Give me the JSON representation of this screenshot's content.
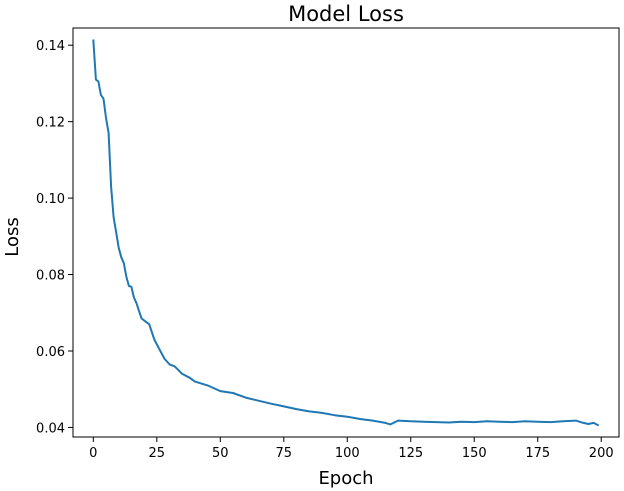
{
  "chart_data": {
    "type": "line",
    "title": "Model Loss",
    "xlabel": "Epoch",
    "ylabel": "Loss",
    "xlim": [
      -8,
      207
    ],
    "ylim": [
      0.0375,
      0.1445
    ],
    "xticks": [
      0,
      25,
      50,
      75,
      100,
      125,
      150,
      175,
      200
    ],
    "xtick_labels": [
      "0",
      "25",
      "50",
      "75",
      "100",
      "125",
      "150",
      "175",
      "200"
    ],
    "yticks": [
      0.04,
      0.06,
      0.08,
      0.1,
      0.12,
      0.14
    ],
    "ytick_labels": [
      "0.04",
      "0.06",
      "0.08",
      "0.10",
      "0.12",
      "0.14"
    ],
    "grid": false,
    "legend": "none",
    "series": [
      {
        "color": "#1f77b4",
        "x": [
          0,
          1,
          2,
          3,
          4,
          5,
          6,
          7,
          8,
          9,
          10,
          11,
          12,
          13,
          14,
          15,
          16,
          17,
          18,
          19,
          20,
          22,
          24,
          26,
          28,
          30,
          32,
          35,
          38,
          40,
          45,
          50,
          55,
          60,
          65,
          70,
          75,
          80,
          85,
          90,
          95,
          100,
          105,
          110,
          115,
          117,
          120,
          125,
          130,
          135,
          140,
          145,
          150,
          155,
          160,
          165,
          170,
          175,
          180,
          185,
          190,
          193,
          195,
          197,
          199
        ],
        "y": [
          0.1415,
          0.131,
          0.1305,
          0.127,
          0.126,
          0.121,
          0.117,
          0.103,
          0.095,
          0.091,
          0.087,
          0.0845,
          0.083,
          0.0795,
          0.077,
          0.0768,
          0.074,
          0.0725,
          0.0705,
          0.0685,
          0.068,
          0.067,
          0.063,
          0.0605,
          0.058,
          0.0565,
          0.056,
          0.054,
          0.053,
          0.052,
          0.051,
          0.0495,
          0.049,
          0.0478,
          0.047,
          0.0462,
          0.0455,
          0.0448,
          0.0442,
          0.0438,
          0.0432,
          0.0428,
          0.0422,
          0.0418,
          0.0412,
          0.0408,
          0.0418,
          0.0416,
          0.0415,
          0.0414,
          0.0413,
          0.0415,
          0.0414,
          0.0416,
          0.0415,
          0.0414,
          0.0416,
          0.0415,
          0.0414,
          0.0416,
          0.0418,
          0.0412,
          0.0409,
          0.0412,
          0.0405
        ]
      }
    ]
  }
}
